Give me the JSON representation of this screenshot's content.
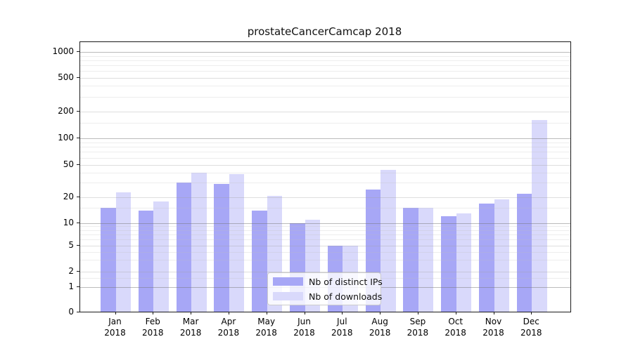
{
  "title": "prostateCancerCamcap 2018",
  "chart_data": {
    "type": "bar",
    "title": "prostateCancerCamcap 2018",
    "categories": [
      "Jan 2018",
      "Feb 2018",
      "Mar 2018",
      "Apr 2018",
      "May 2018",
      "Jun 2018",
      "Jul 2018",
      "Aug 2018",
      "Sep 2018",
      "Oct 2018",
      "Nov 2018",
      "Dec 2018"
    ],
    "category_line1": [
      "Jan",
      "Feb",
      "Mar",
      "Apr",
      "May",
      "Jun",
      "Jul",
      "Aug",
      "Sep",
      "Oct",
      "Nov",
      "Dec"
    ],
    "category_line2": [
      "2018",
      "2018",
      "2018",
      "2018",
      "2018",
      "2018",
      "2018",
      "2018",
      "2018",
      "2018",
      "2018",
      "2018"
    ],
    "series": [
      {
        "name": "Nb of distinct IPs",
        "color": "#a7a7f6",
        "color_rgba": "rgba(0,0,230,0.345)",
        "values": [
          15,
          14,
          30,
          29,
          14,
          10,
          5,
          25,
          15,
          12,
          17,
          22
        ]
      },
      {
        "name": "Nb of downloads",
        "color": "#d9d9fb",
        "color_rgba": "rgba(0,0,230,0.15)",
        "values": [
          23,
          18,
          40,
          38,
          21,
          11,
          5,
          43,
          15,
          13,
          19,
          160
        ]
      }
    ],
    "xlabel": "",
    "ylabel": "",
    "yscale": "log-like (0,1,2,5,10,20,50,100,200,500,1000)",
    "yticks": [
      0,
      1,
      2,
      5,
      10,
      20,
      50,
      100,
      200,
      500,
      1000
    ],
    "ylim": [
      0,
      1300
    ],
    "grid": true,
    "legend_position": "inside lower-center"
  },
  "legend": {
    "items": [
      {
        "label": "Nb of distinct IPs"
      },
      {
        "label": "Nb of downloads"
      }
    ]
  }
}
